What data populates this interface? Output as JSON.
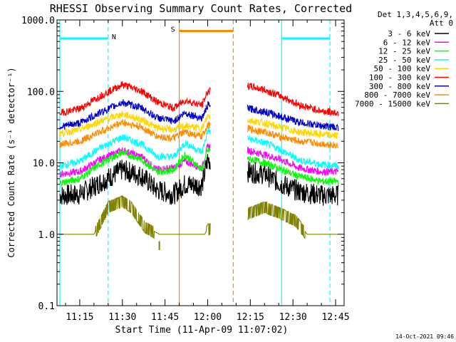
{
  "chart_data": {
    "type": "line",
    "title": "RHESSI Observing Summary Count Rates, Corrected",
    "xlabel": "Start Time (11-Apr-09 11:07:02)",
    "ylabel": "Corrected Count Rate (s⁻¹ detector⁻¹)",
    "y_scale": "log",
    "ylim": [
      0.1,
      1000
    ],
    "xlim": [
      "11:07",
      "12:48"
    ],
    "x_ticks": [
      "11:15",
      "11:30",
      "11:45",
      "12:00",
      "12:15",
      "12:30",
      "12:45"
    ],
    "y_ticks": [
      "0.1",
      "1.0",
      "10.0",
      "100.0",
      "1000.0"
    ],
    "legend": {
      "placement": "right",
      "header": [
        "Det 1,3,4,5,6,9,",
        "Att 0"
      ]
    },
    "series": [
      {
        "name": "3 - 6 keV",
        "color": "#000000",
        "x": [
          "11:08",
          "11:15",
          "11:22",
          "11:30",
          "11:37",
          "11:42",
          "11:48",
          "11:52",
          "11:58",
          "12:00",
          "12:14",
          "12:20",
          "12:26",
          "12:32",
          "12:40",
          "12:46"
        ],
        "y": [
          3.5,
          3.6,
          5.2,
          8.0,
          6.5,
          4.2,
          3.6,
          5.0,
          4.8,
          11.0,
          7.5,
          7.0,
          5.0,
          4.0,
          3.5,
          3.5
        ]
      },
      {
        "name": "6 - 12 keV",
        "color": "#ff00ff",
        "x": [
          "11:08",
          "11:15",
          "11:22",
          "11:30",
          "11:37",
          "11:42",
          "11:48",
          "11:52",
          "11:58",
          "12:00",
          "12:14",
          "12:20",
          "12:26",
          "12:32",
          "12:40",
          "12:46"
        ],
        "y": [
          7.0,
          7.5,
          11.0,
          15.0,
          12.0,
          8.0,
          8.5,
          10.5,
          8.5,
          17.0,
          15.0,
          13.0,
          11.0,
          8.5,
          7.5,
          7.5
        ]
      },
      {
        "name": "12 - 25 keV",
        "color": "#00ff00",
        "x": [
          "11:08",
          "11:15",
          "11:22",
          "11:30",
          "11:37",
          "11:42",
          "11:48",
          "11:52",
          "11:58",
          "12:00",
          "12:14",
          "12:20",
          "12:26",
          "12:32",
          "12:40",
          "12:46"
        ],
        "y": [
          5.2,
          6.0,
          9.5,
          14.0,
          11.0,
          7.5,
          8.0,
          13.0,
          8.0,
          15.0,
          11.5,
          10.0,
          8.0,
          6.5,
          5.5,
          5.5
        ]
      },
      {
        "name": "25 - 50 keV",
        "color": "#00ffff",
        "x": [
          "11:08",
          "11:15",
          "11:22",
          "11:30",
          "11:37",
          "11:42",
          "11:48",
          "11:52",
          "11:58",
          "12:00",
          "12:14",
          "12:20",
          "12:26",
          "12:32",
          "12:40",
          "12:46"
        ],
        "y": [
          9.0,
          10.5,
          16.0,
          23.0,
          18.0,
          12.5,
          12.0,
          19.0,
          14.0,
          28.0,
          22.0,
          19.0,
          15.0,
          11.0,
          9.5,
          9.0
        ]
      },
      {
        "name": "50 - 100 keV",
        "color": "#ffd700",
        "x": [
          "11:08",
          "11:15",
          "11:22",
          "11:30",
          "11:37",
          "11:42",
          "11:48",
          "11:52",
          "11:58",
          "12:00",
          "12:14",
          "12:20",
          "12:26",
          "12:32",
          "12:40",
          "12:46"
        ],
        "y": [
          26.0,
          29.0,
          38.0,
          48.0,
          40.0,
          31.0,
          29.0,
          33.0,
          30.0,
          45.0,
          40.0,
          36.0,
          31.0,
          27.0,
          25.0,
          24.0
        ]
      },
      {
        "name": "100 - 300 keV",
        "color": "#ff0000",
        "x": [
          "11:08",
          "11:15",
          "11:22",
          "11:30",
          "11:37",
          "11:42",
          "11:48",
          "11:52",
          "11:58",
          "12:00",
          "12:14",
          "12:20",
          "12:26",
          "12:32",
          "12:40",
          "12:46"
        ],
        "y": [
          50.0,
          57.0,
          85.0,
          125.0,
          100.0,
          72.0,
          58.0,
          75.0,
          64.0,
          100.0,
          120.0,
          105.0,
          85.0,
          65.0,
          53.0,
          50.0
        ]
      },
      {
        "name": "300 - 800 keV",
        "color": "#0000cc",
        "x": [
          "11:08",
          "11:15",
          "11:22",
          "11:30",
          "11:37",
          "11:42",
          "11:48",
          "11:52",
          "11:58",
          "12:00",
          "12:14",
          "12:20",
          "12:26",
          "12:32",
          "12:40",
          "12:46"
        ],
        "y": [
          32.0,
          36.0,
          50.0,
          70.0,
          58.0,
          43.0,
          38.0,
          50.0,
          42.0,
          64.0,
          58.0,
          52.0,
          44.0,
          37.0,
          33.0,
          31.0
        ]
      },
      {
        "name": "800 - 7000 keV",
        "color": "#ff8c00",
        "x": [
          "11:08",
          "11:15",
          "11:22",
          "11:30",
          "11:37",
          "11:42",
          "11:48",
          "11:52",
          "11:58",
          "12:00",
          "12:14",
          "12:20",
          "12:26",
          "12:32",
          "12:40",
          "12:46"
        ],
        "y": [
          18.0,
          20.0,
          27.0,
          37.0,
          31.0,
          23.5,
          22.0,
          27.0,
          23.0,
          34.0,
          30.0,
          27.0,
          23.0,
          20.0,
          18.5,
          17.5
        ]
      },
      {
        "name": "7000 - 15000 keV",
        "color": "#808000",
        "x": [
          "11:08",
          "11:15",
          "11:20",
          "11:25",
          "11:30",
          "11:33",
          "11:38",
          "11:43",
          "11:46",
          "11:54",
          "11:59",
          "12:00",
          "12:14",
          "12:20",
          "12:26",
          "12:31",
          "12:35",
          "12:46"
        ],
        "y": [
          1.0,
          1.0,
          1.0,
          2.5,
          3.0,
          2.5,
          1.3,
          1.0,
          1.0,
          1.0,
          1.0,
          1.2,
          2.0,
          2.5,
          2.0,
          1.6,
          1.0,
          1.0
        ]
      }
    ],
    "gaps": [
      [
        "12:01",
        "12:14"
      ]
    ],
    "spike": {
      "x": "11:43",
      "y": [
        0.6,
        0.8
      ]
    },
    "annotations": [
      {
        "label": "N",
        "color": "#00ffff",
        "x_start": "11:08",
        "x_end": "11:25",
        "bar_y": 550
      },
      {
        "label": "",
        "color": "#00ffff",
        "x_start": "12:26",
        "x_end": "12:43",
        "bar_y": 550
      },
      {
        "label": "S",
        "color": "#ff8c00",
        "x_start": "11:50",
        "x_end": "12:09",
        "bar_y": 700
      }
    ],
    "vlines": [
      {
        "x": "11:08",
        "color": "#00ffff",
        "style": "solid"
      },
      {
        "x": "11:25",
        "color": "#00ffff",
        "style": "dashed"
      },
      {
        "x": "11:50",
        "color": "#ff8c00",
        "style": "solid"
      },
      {
        "x": "12:09",
        "color": "#ff8c00",
        "style": "dashed"
      },
      {
        "x": "12:26",
        "color": "#00ffff",
        "style": "solid"
      },
      {
        "x": "12:43",
        "color": "#00ffff",
        "style": "dashed"
      }
    ]
  },
  "footer_timestamp": "14-Oct-2021 09:46"
}
